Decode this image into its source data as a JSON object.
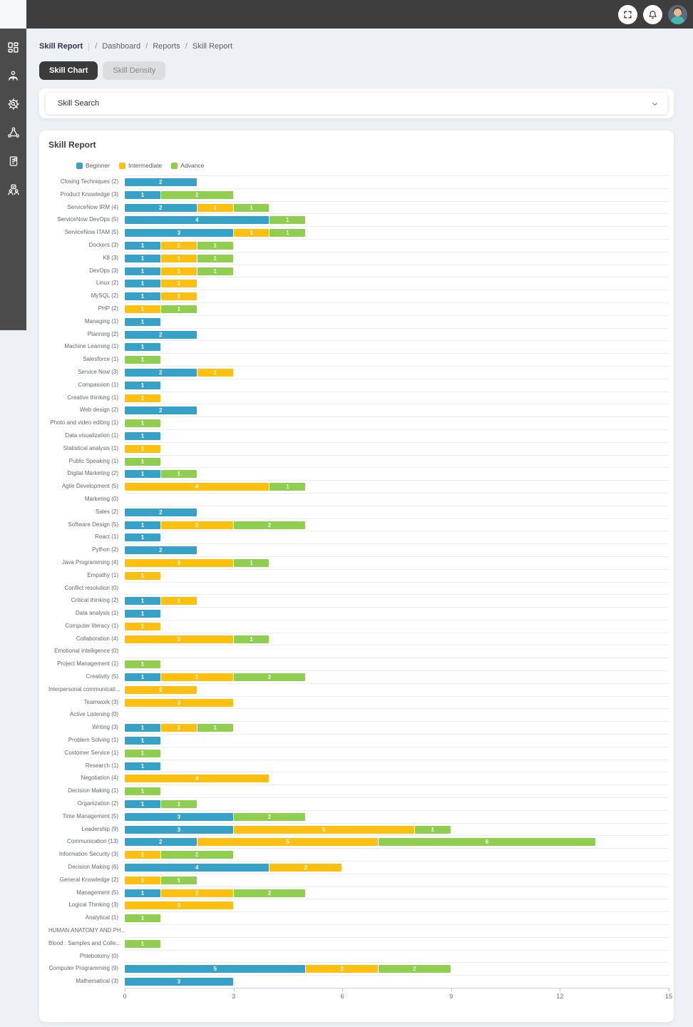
{
  "topbar": {
    "icons": {
      "fullscreen": "fullscreen-icon",
      "notifications": "bell-icon",
      "profile": "avatar"
    }
  },
  "sidebar": {
    "items": [
      {
        "name": "dashboard"
      },
      {
        "name": "learner"
      },
      {
        "name": "skills-engine"
      },
      {
        "name": "network"
      },
      {
        "name": "reports"
      },
      {
        "name": "team"
      }
    ]
  },
  "breadcrumb": {
    "current": "Skill Report",
    "pipe": "|",
    "slash": "/",
    "path": [
      "Dashboard",
      "Reports",
      "Skill Report"
    ]
  },
  "tabs": {
    "skill_chart": "Skill Chart",
    "skill_density": "Skill Density"
  },
  "search": {
    "placeholder": "Skill Search"
  },
  "chart_data": {
    "type": "bar",
    "orientation": "horizontal",
    "stacked": true,
    "title": "Skill Report",
    "xlim": [
      0,
      15
    ],
    "xticks": [
      0,
      3,
      6,
      9,
      12,
      15
    ],
    "grid": true,
    "legend_position": "top-left",
    "legend": [
      {
        "label": "Beginner",
        "color": "#36a2c7"
      },
      {
        "label": "Intermediate",
        "color": "#fdc010"
      },
      {
        "label": "Advance",
        "color": "#8fce4e"
      }
    ],
    "rows": [
      {
        "label": "Closing Techniques (2)",
        "values": [
          2,
          0,
          0
        ]
      },
      {
        "label": "Product Knowledge (3)",
        "values": [
          1,
          0,
          2
        ]
      },
      {
        "label": "ServiceNow IRM (4)",
        "values": [
          2,
          1,
          1
        ]
      },
      {
        "label": "ServiceNow DevOps (5)",
        "values": [
          4,
          0,
          1
        ]
      },
      {
        "label": "ServiceNow ITAM (5)",
        "values": [
          3,
          1,
          1
        ]
      },
      {
        "label": "Dockers (3)",
        "values": [
          1,
          1,
          1
        ]
      },
      {
        "label": "K8 (3)",
        "values": [
          1,
          1,
          1
        ]
      },
      {
        "label": "DevOps (3)",
        "values": [
          1,
          1,
          1
        ]
      },
      {
        "label": "Linux (2)",
        "values": [
          1,
          1,
          0
        ]
      },
      {
        "label": "MySQL (2)",
        "values": [
          1,
          1,
          0
        ]
      },
      {
        "label": "PHP (2)",
        "values": [
          0,
          1,
          1
        ]
      },
      {
        "label": "Managing (1)",
        "values": [
          1,
          0,
          0
        ]
      },
      {
        "label": "Planning (2)",
        "values": [
          2,
          0,
          0
        ]
      },
      {
        "label": "Machine Learning (1)",
        "values": [
          1,
          0,
          0
        ]
      },
      {
        "label": "Salesforce (1)",
        "values": [
          0,
          0,
          1
        ]
      },
      {
        "label": "Service Now (3)",
        "values": [
          2,
          1,
          0
        ]
      },
      {
        "label": "Compassion (1)",
        "values": [
          1,
          0,
          0
        ]
      },
      {
        "label": "Creative thinking (1)",
        "values": [
          0,
          1,
          0
        ]
      },
      {
        "label": "Web design (2)",
        "values": [
          2,
          0,
          0
        ]
      },
      {
        "label": "Photo and video editing (1)",
        "values": [
          0,
          0,
          1
        ]
      },
      {
        "label": "Data visualization (1)",
        "values": [
          1,
          0,
          0
        ]
      },
      {
        "label": "Statistical analysis (1)",
        "values": [
          0,
          1,
          0
        ]
      },
      {
        "label": "Public Speaking (1)",
        "values": [
          0,
          0,
          1
        ]
      },
      {
        "label": "Digital Marketing (2)",
        "values": [
          1,
          0,
          1
        ]
      },
      {
        "label": "Agile Development (5)",
        "values": [
          0,
          4,
          1
        ]
      },
      {
        "label": "Marketing (0)",
        "values": [
          0,
          0,
          0
        ]
      },
      {
        "label": "Sales (2)",
        "values": [
          2,
          0,
          0
        ]
      },
      {
        "label": "Software Design (5)",
        "values": [
          1,
          2,
          2
        ]
      },
      {
        "label": "React (1)",
        "values": [
          1,
          0,
          0
        ]
      },
      {
        "label": "Python (2)",
        "values": [
          2,
          0,
          0
        ]
      },
      {
        "label": "Java Programming (4)",
        "values": [
          0,
          3,
          1
        ]
      },
      {
        "label": "Empathy (1)",
        "values": [
          0,
          1,
          0
        ]
      },
      {
        "label": "Conflict resolution (0)",
        "values": [
          0,
          0,
          0
        ]
      },
      {
        "label": "Critical thinking (2)",
        "values": [
          1,
          1,
          0
        ]
      },
      {
        "label": "Data analysis (1)",
        "values": [
          1,
          0,
          0
        ]
      },
      {
        "label": "Computer literacy (1)",
        "values": [
          0,
          1,
          0
        ]
      },
      {
        "label": "Collaboration (4)",
        "values": [
          0,
          3,
          1
        ]
      },
      {
        "label": "Emotional intelligence (0)",
        "values": [
          0,
          0,
          0
        ]
      },
      {
        "label": "Project Management (1)",
        "values": [
          0,
          0,
          1
        ]
      },
      {
        "label": "Creativity (5)",
        "values": [
          1,
          2,
          2
        ]
      },
      {
        "label": "Interpersonal communicati...",
        "values": [
          0,
          2,
          0
        ]
      },
      {
        "label": "Teamwork (3)",
        "values": [
          0,
          3,
          0
        ]
      },
      {
        "label": "Active Listening (0)",
        "values": [
          0,
          0,
          0
        ]
      },
      {
        "label": "Writing (3)",
        "values": [
          1,
          1,
          1
        ]
      },
      {
        "label": "Problem Solving (1)",
        "values": [
          1,
          0,
          0
        ]
      },
      {
        "label": "Customer Service (1)",
        "values": [
          0,
          0,
          1
        ]
      },
      {
        "label": "Research (1)",
        "values": [
          1,
          0,
          0
        ]
      },
      {
        "label": "Negotiation (4)",
        "values": [
          0,
          4,
          0
        ]
      },
      {
        "label": "Decision Making (1)",
        "values": [
          0,
          0,
          1
        ]
      },
      {
        "label": "Organization (2)",
        "values": [
          1,
          0,
          1
        ]
      },
      {
        "label": "Time Management (5)",
        "values": [
          3,
          0,
          2
        ]
      },
      {
        "label": "Leadership (9)",
        "values": [
          3,
          5,
          1
        ]
      },
      {
        "label": "Communication (13)",
        "values": [
          2,
          5,
          6
        ]
      },
      {
        "label": "Information Security (3)",
        "values": [
          0,
          1,
          2
        ]
      },
      {
        "label": "Decision Making (6)",
        "values": [
          4,
          2,
          0
        ]
      },
      {
        "label": "General Knowledge (2)",
        "values": [
          0,
          1,
          1
        ]
      },
      {
        "label": "Management (5)",
        "values": [
          1,
          2,
          2
        ]
      },
      {
        "label": "Logical Thinking (3)",
        "values": [
          0,
          3,
          0
        ]
      },
      {
        "label": "Analytical (1)",
        "values": [
          0,
          0,
          1
        ]
      },
      {
        "label": "HUMAN ANATOMY AND PH...",
        "values": [
          0,
          0,
          0
        ]
      },
      {
        "label": "Blood : Samples and Colle...",
        "values": [
          0,
          0,
          1
        ]
      },
      {
        "label": "Phlebotomy (0)",
        "values": [
          0,
          0,
          0
        ]
      },
      {
        "label": "Computer Programming (9)",
        "values": [
          5,
          2,
          2
        ]
      },
      {
        "label": "Mathematical (3)",
        "values": [
          3,
          0,
          0
        ]
      }
    ]
  }
}
